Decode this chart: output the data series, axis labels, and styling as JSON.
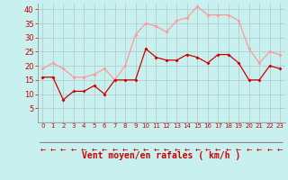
{
  "xlabel": "Vent moyen/en rafales ( km/h )",
  "background_color": "#c8f0ee",
  "grid_color": "#b0c8c8",
  "x": [
    0,
    1,
    2,
    3,
    4,
    5,
    6,
    7,
    8,
    9,
    10,
    11,
    12,
    13,
    14,
    15,
    16,
    17,
    18,
    19,
    20,
    21,
    22,
    23
  ],
  "y_mean": [
    16,
    16,
    8,
    11,
    11,
    13,
    10,
    15,
    15,
    15,
    26,
    23,
    22,
    22,
    24,
    23,
    21,
    24,
    24,
    21,
    15,
    15,
    20,
    19
  ],
  "y_gust": [
    19,
    21,
    19,
    16,
    16,
    17,
    19,
    15,
    20,
    31,
    35,
    34,
    32,
    36,
    37,
    41,
    38,
    38,
    38,
    36,
    26,
    21,
    25,
    24
  ],
  "mean_color": "#cc0000",
  "gust_color": "#ff9999",
  "ylim": [
    0,
    42
  ],
  "yticks": [
    5,
    10,
    15,
    20,
    25,
    30,
    35,
    40
  ],
  "xticks": [
    0,
    1,
    2,
    3,
    4,
    5,
    6,
    7,
    8,
    9,
    10,
    11,
    12,
    13,
    14,
    15,
    16,
    17,
    18,
    19,
    20,
    21,
    22,
    23
  ],
  "arrow_color": "#cc0000",
  "xlabel_color": "#cc0000",
  "tick_color": "#cc0000",
  "axis_color": "#888888",
  "fontsize_xlabel": 7,
  "fontsize_tick_y": 6,
  "fontsize_tick_x": 5
}
